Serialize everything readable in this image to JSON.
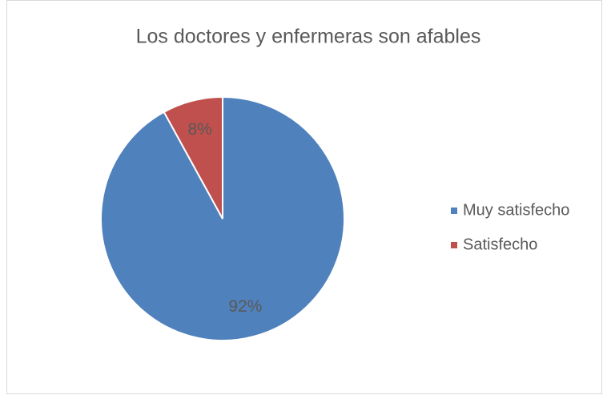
{
  "chart_data": {
    "type": "pie",
    "title": "Los doctores y enfermeras son afables",
    "categories": [
      "Muy satisfecho",
      "Satisfecho"
    ],
    "values": [
      92,
      8
    ],
    "value_labels": [
      "92%",
      "8%"
    ],
    "colors": [
      "#4f81bd",
      "#c0504d"
    ],
    "legend": "right"
  }
}
